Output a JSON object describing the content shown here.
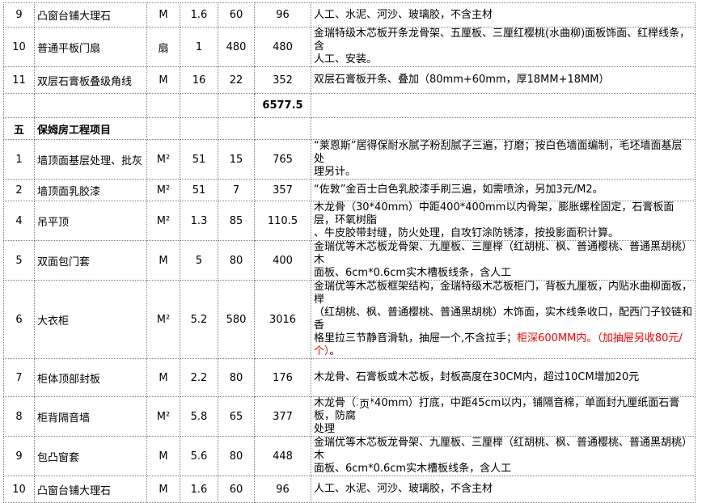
{
  "page": {
    "footer_marker": "页"
  },
  "colors": {
    "red_note": "#ff0000",
    "grid_border": "#7f7f7f"
  },
  "table": {
    "section_subtotal": "6577.5",
    "rows": [
      {
        "type": "item",
        "no": "9",
        "name": "凸窗台铺大理石",
        "unit": "M",
        "qty": "1.6",
        "price": "60",
        "total": "96",
        "desc_parts": [
          {
            "text": "人工、水泥、河沙、玻璃胶，不含主材"
          }
        ]
      },
      {
        "type": "item",
        "no": "10",
        "name": "普通平板门扇",
        "unit": "扇",
        "qty": "1",
        "price": "480",
        "total": "480",
        "desc_parts": [
          {
            "text": "金瑞特级木芯板开条龙骨架、五厘板、三厘红樱桃(水曲柳)面板饰面、红榉线条，含\n人工、安装。"
          }
        ]
      },
      {
        "type": "item",
        "no": "11",
        "name": "双层石膏板叠级角线",
        "unit": "M",
        "qty": "16",
        "price": "22",
        "total": "352",
        "desc_parts": [
          {
            "text": "双层石膏板开条、叠加（80mm+60mm，厚18MM+18MM）"
          }
        ]
      },
      {
        "type": "total",
        "total": "6577.5",
        "desc_parts": []
      },
      {
        "type": "section",
        "no": "五",
        "name": "保姆房工程项目",
        "desc_parts": []
      },
      {
        "type": "item",
        "no": "1",
        "name": "墙顶面基层处理、批灰",
        "unit": "M²",
        "qty": "51",
        "price": "15",
        "total": "765",
        "desc_parts": [
          {
            "text": "“莱恩斯”居得保耐水腻子粉刮腻子三遍，打磨；按白色墙面编制，毛坯墙面基层处\n理另计。"
          }
        ]
      },
      {
        "type": "item",
        "no": "2",
        "name": "墙顶面乳胶漆",
        "unit": "M²",
        "qty": "51",
        "price": "7",
        "total": "357",
        "desc_parts": [
          {
            "text": "“佐敦”金百士白色乳胶漆手刷三遍，如需喷涂，另加3元/M2。"
          }
        ]
      },
      {
        "type": "item",
        "no": "4",
        "name": "吊平顶",
        "unit": "M²",
        "qty": "1.3",
        "price": "85",
        "total": "110.5",
        "desc_parts": [
          {
            "text": "木龙骨（30*40mm）中距400*400mm以内骨架，膨胀螺栓固定，石膏板面层，环氧树脂\n、牛皮胶带封缝，防火处理，自攻钉涂防锈漆，按投影面积计算。"
          }
        ]
      },
      {
        "type": "item",
        "no": "5",
        "name": "双面包门套",
        "unit": "M",
        "qty": "5",
        "price": "80",
        "total": "400",
        "desc_parts": [
          {
            "text": "金瑞优等木芯板龙骨架、九厘板、三厘榉（红胡桃、枫、普通樱桃、普通黑胡桃）木\n面板、6cm*0.6cm实木槽板线条，含人工"
          }
        ]
      },
      {
        "type": "item",
        "no": "6",
        "name": "大衣柜",
        "unit": "M²",
        "qty": "5.2",
        "price": "580",
        "total": "3016",
        "desc_parts": [
          {
            "text": "金瑞优等木芯板框架结构，金瑞特级木芯板柜门，背板九厘板，内贴水曲柳面板，榉\n（红胡桃、枫、普通樱桃、普通黑胡桃）木饰面，实木线条收口，配西门子铰链和香\n格里拉三节静音滑轨，抽屉一个,不含拉手；"
          },
          {
            "text": "柜深600MM内。（加抽屉另收80元/个）",
            "red": true
          },
          {
            "text": "。"
          }
        ]
      },
      {
        "type": "item",
        "no": "7",
        "name": "柜体顶部封板",
        "unit": "M",
        "qty": "2.2",
        "price": "80",
        "total": "176",
        "desc_parts": [
          {
            "text": "木龙骨、石膏板或木芯板，封板高度在30CM内，超过10CM增加20元"
          }
        ]
      },
      {
        "type": "item",
        "no": "8",
        "name": "柜背隔音墙",
        "unit": "M²",
        "qty": "5.8",
        "price": "65",
        "total": "377",
        "desc_parts": [
          {
            "text": "木龙骨（30*40mm）打底，中距45cm以内，铺隔音棉，单面封九厘纸面石膏板，防腐\n处理"
          }
        ]
      },
      {
        "type": "item",
        "no": "9",
        "name": "包凸窗套",
        "unit": "M",
        "qty": "5.6",
        "price": "80",
        "total": "448",
        "desc_parts": [
          {
            "text": "金瑞优等木芯板龙骨架、九厘板、三厘榉（红胡桃、枫、普通樱桃、普通黑胡桃）木\n面板、6cm*0.6cm实木槽板线条，含人工"
          }
        ]
      },
      {
        "type": "item",
        "no": "10",
        "name": "凸窗台铺大理石",
        "unit": "M",
        "qty": "1.6",
        "price": "60",
        "total": "96",
        "desc_parts": [
          {
            "text": "人工、水泥、河沙、玻璃胶，不含主材"
          }
        ]
      }
    ]
  }
}
